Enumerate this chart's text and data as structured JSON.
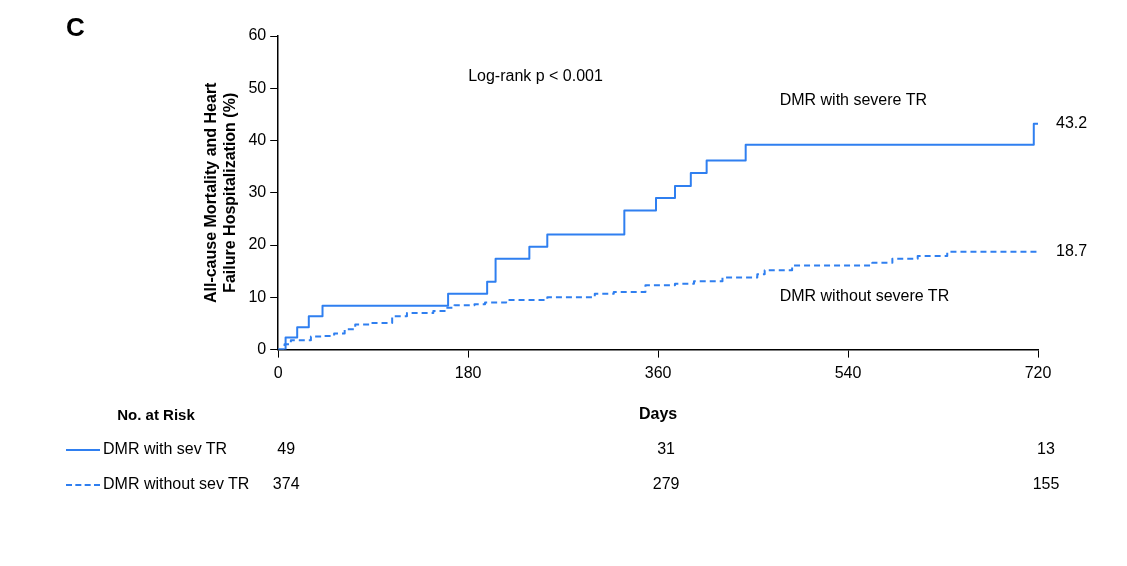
{
  "chart_data": {
    "type": "step",
    "title": "C",
    "xlabel": "Days",
    "ylabel": "All-cause Mortality and Heart Failure Hospitalization (%)",
    "xlim": [
      0,
      720
    ],
    "xticks": [
      0,
      180,
      360,
      540,
      720
    ],
    "ylim": [
      0,
      60
    ],
    "yticks": [
      0,
      10,
      20,
      30,
      40,
      50,
      60
    ],
    "grid": false,
    "legend": false,
    "marker": "none",
    "series": [
      {
        "name": "DMR with severe TR",
        "color": "#2f7ff0",
        "line_style": "solid",
        "x": [
          0,
          7,
          18,
          29,
          42,
          161,
          198,
          206,
          238,
          255,
          328,
          358,
          376,
          391,
          406,
          443,
          716,
          720
        ],
        "values": [
          0,
          2.3,
          4.3,
          6.4,
          8.4,
          10.7,
          13.0,
          17.4,
          19.7,
          22.0,
          26.6,
          29.0,
          31.3,
          33.8,
          36.2,
          39.2,
          43.2,
          43.2
        ]
      },
      {
        "name": "DMR without severe TR",
        "color": "#2f7ff0",
        "line_style": "dashed",
        "x": [
          0,
          6,
          12,
          31,
          43,
          53,
          63,
          73,
          88,
          108,
          122,
          147,
          159,
          167,
          186,
          196,
          216,
          255,
          300,
          318,
          348,
          376,
          394,
          421,
          454,
          461,
          487,
          563,
          582,
          606,
          634,
          720
        ],
        "values": [
          0,
          1.0,
          1.8,
          2.5,
          2.6,
          3.1,
          3.9,
          4.8,
          5.1,
          6.4,
          7.0,
          7.4,
          8.0,
          8.5,
          8.7,
          9.0,
          9.5,
          10.0,
          10.7,
          11.0,
          12.3,
          12.6,
          13.1,
          13.8,
          14.4,
          15.2,
          16.1,
          16.6,
          17.4,
          17.9,
          18.7,
          18.7
        ]
      }
    ],
    "annotations": [
      {
        "text": "43.2",
        "x": 720,
        "y": 43.2
      },
      {
        "text": "18.7",
        "x": 720,
        "y": 18.7
      },
      "Log-rank p < 0.001",
      "No. at Risk",
      "DMR with sev TR",
      "49",
      "31",
      "13",
      "DMR without sev TR",
      "374",
      "279",
      "155"
    ]
  }
}
